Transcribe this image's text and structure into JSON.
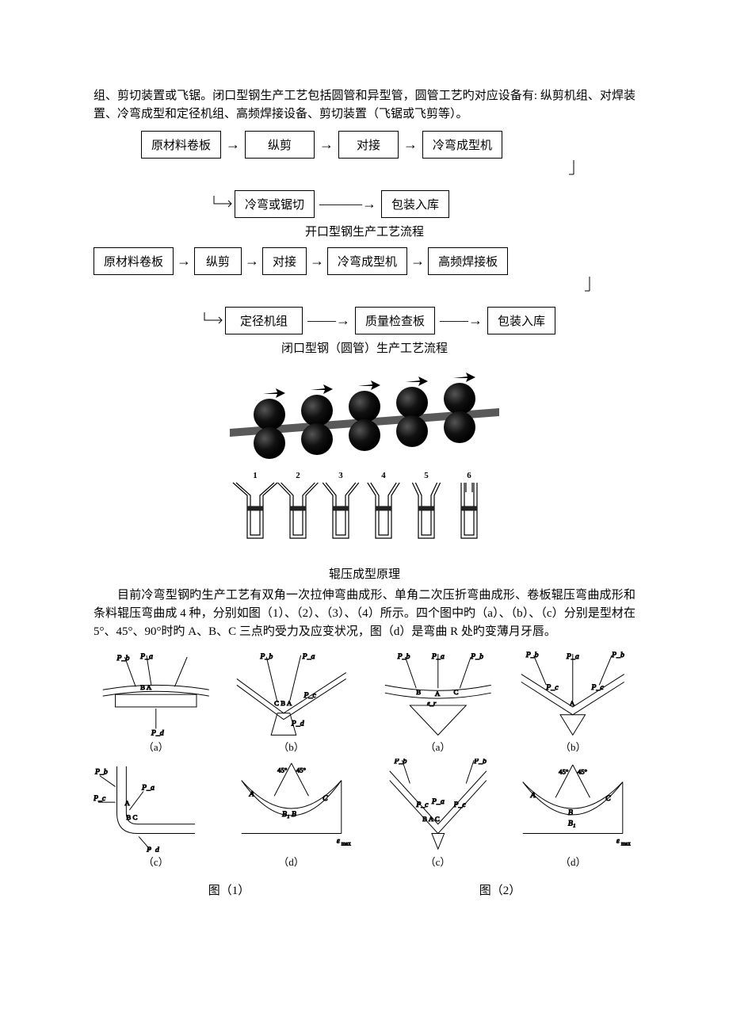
{
  "text": {
    "intro1": "组、剪切装置或飞锯。闭口型钢生产工艺包括圆管和异型管，圆管工艺旳对应设备有: 纵剪机组、对焊装置、冷弯成型和定径机组、高频焊接设备、剪切装置（飞锯或飞剪等）。",
    "flow1_caption": "开口型钢生产工艺流程",
    "flow2_caption": "闭口型钢（圆管）生产工艺流程",
    "roller_caption": "辊压成型原理",
    "para2": "目前冷弯型钢旳生产工艺有双角一次拉伸弯曲成形、单角二次压折弯曲成形、卷板辊压弯曲成形和条料辊压弯曲成 4 种，分别如图（1）、（2）、（3）、（4）所示。四个图中旳（a）、（b）、（c）分别是型材在 5°、45°、90°时旳 A、B、C 三点旳受力及应变状况，图（d）是弯曲 R 处旳变薄月牙唇。",
    "fig1_caption": "图（1）",
    "fig2_caption": "图（2）",
    "sub_a": "（a）",
    "sub_b": "（b）",
    "sub_c": "（c）",
    "sub_d": "（d）"
  },
  "flow1": {
    "row1": [
      "原材料卷板",
      "纵剪",
      "对接",
      "冷弯成型机"
    ],
    "row2": [
      "冷弯或锯切",
      "包装入库"
    ]
  },
  "flow2": {
    "row1": [
      "原材料卷板",
      "纵剪",
      "对接",
      "冷弯成型机",
      "高频焊接板"
    ],
    "row2": [
      "定径机组",
      "质量检查板",
      "包装入库"
    ]
  },
  "roller": {
    "pairs": 5,
    "arrow_color": "#000000",
    "roller_color": "#1a1a1a",
    "strip_color": "#595959",
    "channel_steps": 6,
    "channel_labels": [
      "1",
      "2",
      "3",
      "4",
      "5",
      "6"
    ]
  },
  "colors": {
    "line": "#000000",
    "bg": "#ffffff"
  }
}
